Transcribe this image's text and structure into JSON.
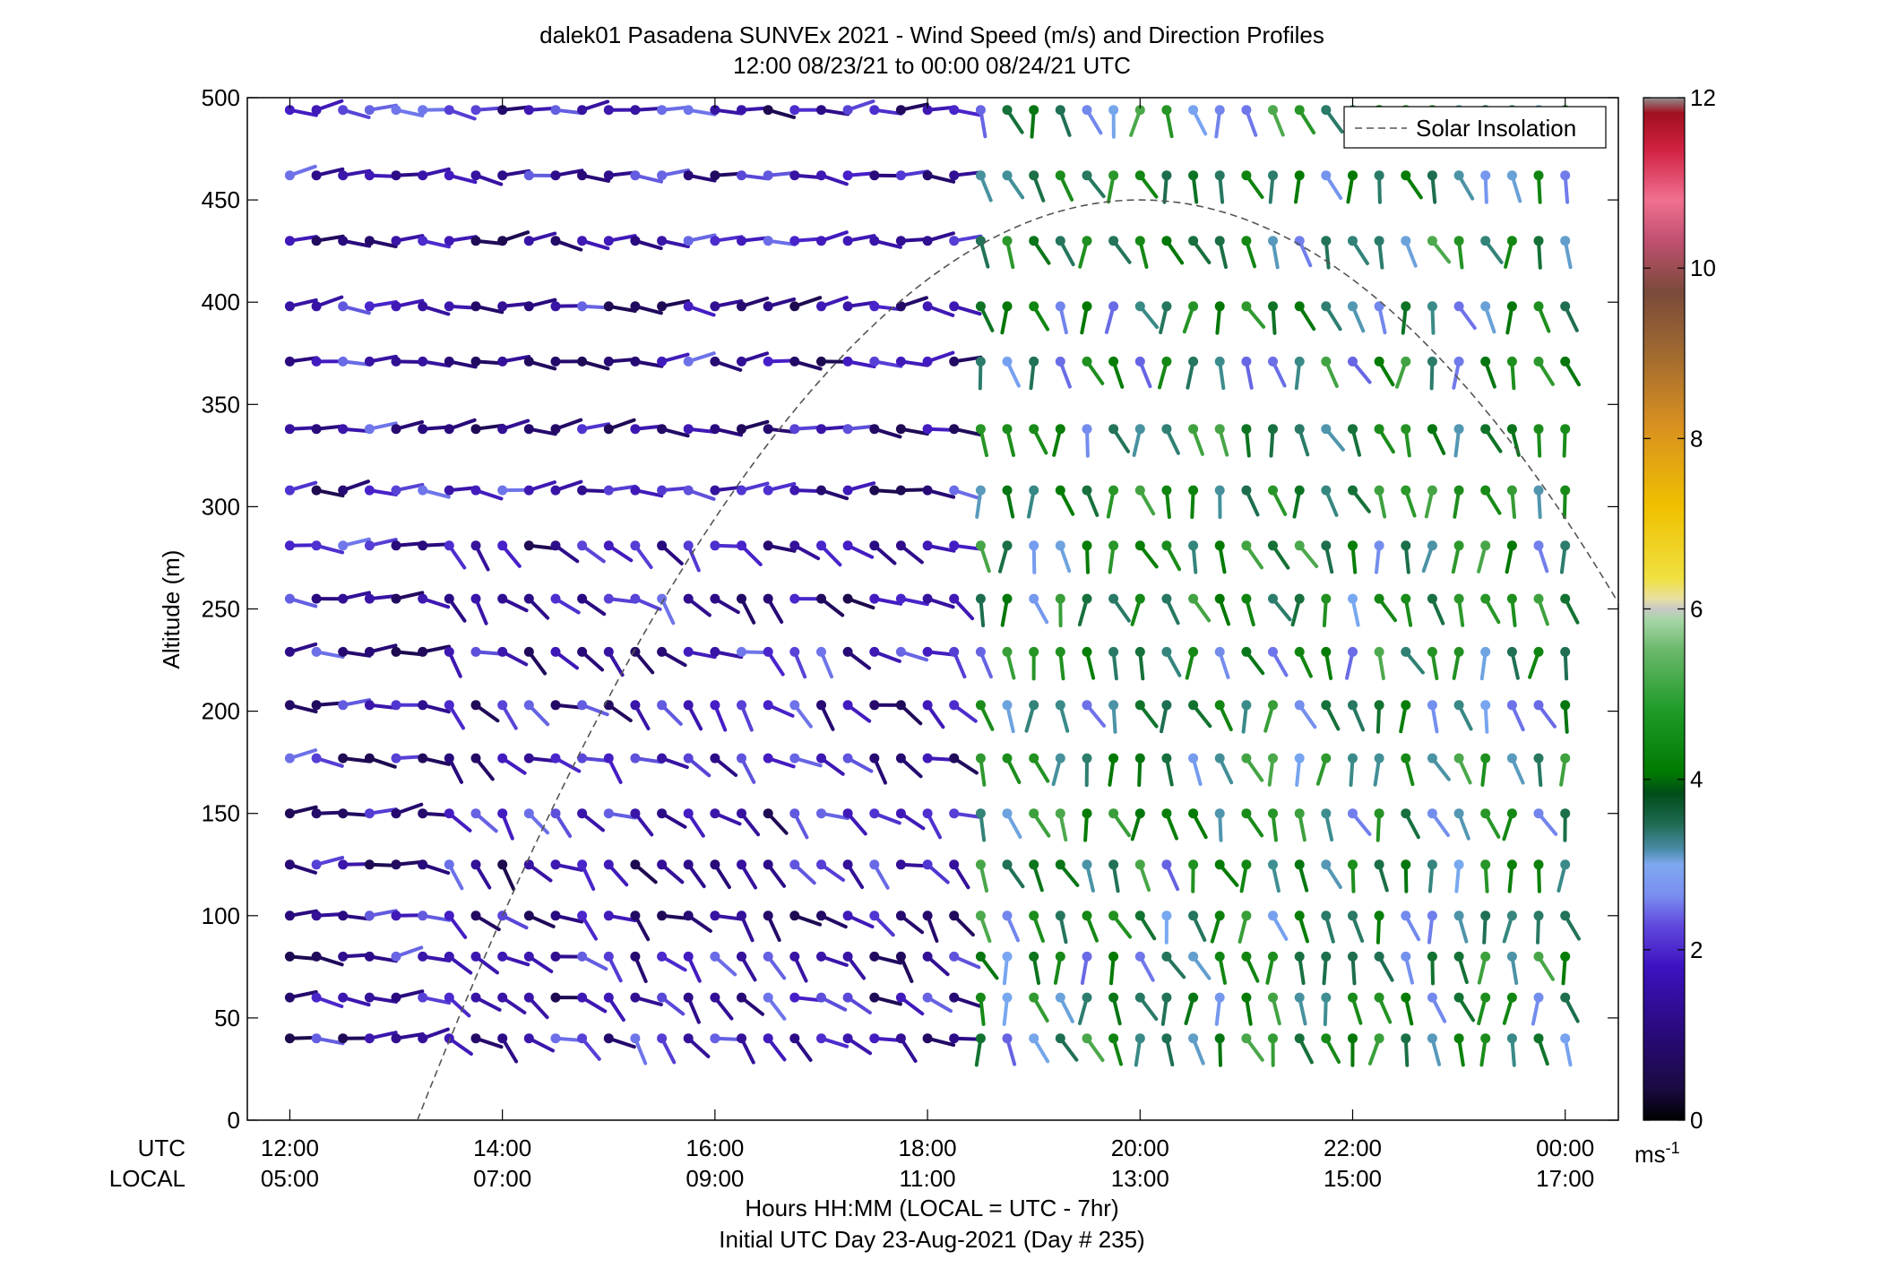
{
  "chart_data": {
    "type": "scatter",
    "title": "dalek01 Pasadena SUNVEx 2021 - Wind Speed (m/s) and Direction Profiles",
    "subtitle": "12:00 08/23/21 to 00:00 08/24/21  UTC",
    "ylabel": "Altitude (m)",
    "xlabel": "Hours HH:MM  (LOCAL = UTC - 7hr)",
    "xlabel2": "Initial UTC Day 23-Aug-2021 (Day # 235)",
    "row_labels": [
      "UTC",
      "LOCAL"
    ],
    "x_ticks_utc": [
      "12:00",
      "14:00",
      "16:00",
      "18:00",
      "20:00",
      "22:00",
      "00:00"
    ],
    "x_ticks_local": [
      "05:00",
      "07:00",
      "09:00",
      "11:00",
      "13:00",
      "15:00",
      "17:00"
    ],
    "x_tick_hours": [
      12,
      14,
      16,
      18,
      20,
      22,
      24
    ],
    "xlim": [
      11.6,
      24.5
    ],
    "y_ticks": [
      "0",
      "50",
      "100",
      "150",
      "200",
      "250",
      "300",
      "350",
      "400",
      "450",
      "500"
    ],
    "ylim": [
      0,
      500
    ],
    "grid": false,
    "legend": {
      "label": "Solar Insolation",
      "placement": "top-right",
      "style": "dashed",
      "color": "#555555"
    },
    "colorbar": {
      "range": [
        0,
        12
      ],
      "ticks": [
        "0",
        "2",
        "4",
        "6",
        "8",
        "10",
        "12"
      ],
      "unit_label": "ms",
      "unit_exp": "-1"
    },
    "solar_insolation_curve": {
      "start_hour": 13.2,
      "end_hour": 24.5,
      "peak_hour": 20.0,
      "peak_altitude": 450,
      "altitude_at_start": 0
    },
    "wind_barbs": {
      "start_hour": 12.0,
      "step_hours": 0.25,
      "count": 49,
      "altitudes": [
        40,
        60,
        80,
        100,
        125,
        150,
        177,
        203,
        229,
        255,
        281,
        308,
        338,
        371,
        398,
        430,
        462,
        494
      ],
      "note_regimes": [
        {
          "from_hour": 12.0,
          "to_hour": 18.3,
          "speed_ms": [
            0.5,
            2.0
          ],
          "direction": "variable, mostly from north-west and west"
        },
        {
          "from_hour": 18.5,
          "to_hour": 24.0,
          "speed_ms": [
            2.0,
            4.5
          ],
          "direction": "mostly from south and south-west"
        }
      ]
    }
  }
}
